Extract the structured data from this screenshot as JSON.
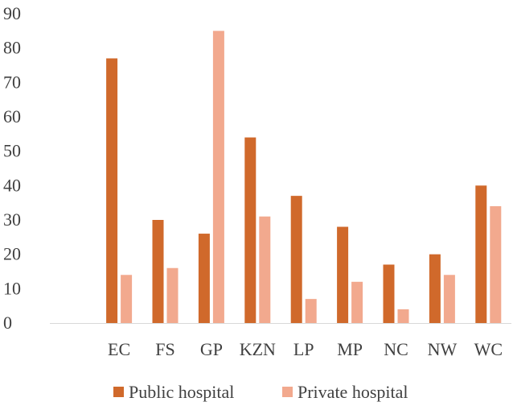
{
  "chart_data": {
    "type": "bar",
    "categories": [
      "",
      "EC",
      "FS",
      "GP",
      "KZN",
      "LP",
      "MP",
      "NC",
      "NW",
      "WC"
    ],
    "series": [
      {
        "name": "Public hospital",
        "values": [
          null,
          77,
          30,
          26,
          54,
          37,
          28,
          17,
          20,
          40
        ],
        "color": "#D0692B"
      },
      {
        "name": "Private hospital",
        "values": [
          null,
          14,
          16,
          85,
          31,
          7,
          12,
          4,
          14,
          34
        ],
        "color": "#F2A98E"
      }
    ],
    "yticks": [
      "0",
      "10",
      "20",
      "30",
      "40",
      "50",
      "60",
      "70",
      "80",
      "90"
    ],
    "ylim": [
      0,
      90
    ],
    "grid": false,
    "legend_position": "bottom"
  }
}
